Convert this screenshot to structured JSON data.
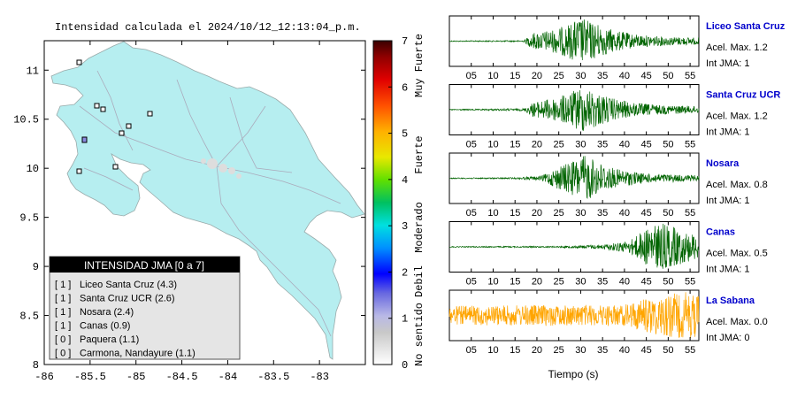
{
  "map_title": "Intensidad calculada el 2024/10/12_12:13:04_p.m.",
  "map": {
    "x_ticks": [
      "-86",
      "-85.5",
      "-85",
      "-84.5",
      "-84",
      "-83.5",
      "-83"
    ],
    "y_ticks": [
      "11",
      "10.5",
      "10",
      "9.5",
      "9",
      "8.5",
      "8"
    ],
    "land_color": "#b6eef0",
    "water_color": "#ffffff"
  },
  "colorbar": {
    "ticks": [
      "7",
      "6",
      "5",
      "4",
      "3",
      "2",
      "1",
      "0"
    ],
    "categories": [
      "Muy Fuerte",
      "Fuerte",
      "Moderado",
      "Debil",
      "No sentido"
    ]
  },
  "legend": {
    "title": "INTENSIDAD JMA [0 a 7]",
    "items": [
      {
        "level": "[ 1 ]",
        "station": "Liceo Santa Cruz (4.3)"
      },
      {
        "level": "[ 1 ]",
        "station": "Santa Cruz UCR (2.6)"
      },
      {
        "level": "[ 1 ]",
        "station": "Nosara (2.4)"
      },
      {
        "level": "[ 1 ]",
        "station": "Canas (0.9)"
      },
      {
        "level": "[ 0 ]",
        "station": "Paquera (1.1)"
      },
      {
        "level": "[ 0 ]",
        "station": "Carmona, Nandayure (1.1)"
      }
    ]
  },
  "chart_data": {
    "type": "line",
    "xlabel": "Tiempo (s)",
    "x_ticks": [
      "05",
      "10",
      "15",
      "20",
      "25",
      "30",
      "35",
      "40",
      "45",
      "50",
      "55"
    ],
    "xlim": [
      0,
      57
    ],
    "traces": [
      {
        "name": "Liceo Santa Cruz",
        "accel": "Acel. Max. 1.2",
        "jma": "Int JMA: 1",
        "color": "#006400",
        "envelope": [
          [
            0,
            0.02
          ],
          [
            17,
            0.03
          ],
          [
            19,
            0.35
          ],
          [
            24,
            0.5
          ],
          [
            27,
            0.7
          ],
          [
            30,
            1.0
          ],
          [
            33,
            0.8
          ],
          [
            37,
            0.5
          ],
          [
            42,
            0.3
          ],
          [
            48,
            0.2
          ],
          [
            57,
            0.15
          ]
        ]
      },
      {
        "name": "Santa Cruz UCR",
        "accel": "Acel. Max. 1.2",
        "jma": "Int JMA: 1",
        "color": "#006400",
        "envelope": [
          [
            0,
            0.02
          ],
          [
            17,
            0.05
          ],
          [
            19,
            0.3
          ],
          [
            25,
            0.55
          ],
          [
            28,
            0.75
          ],
          [
            30,
            1.0
          ],
          [
            33,
            0.8
          ],
          [
            37,
            0.5
          ],
          [
            42,
            0.3
          ],
          [
            48,
            0.2
          ],
          [
            57,
            0.15
          ]
        ]
      },
      {
        "name": "Nosara",
        "accel": "Acel. Max. 0.8",
        "jma": "Int JMA: 1",
        "color": "#006400",
        "envelope": [
          [
            0,
            0.02
          ],
          [
            15,
            0.03
          ],
          [
            21,
            0.1
          ],
          [
            25,
            0.5
          ],
          [
            29,
            0.8
          ],
          [
            31,
            1.0
          ],
          [
            34,
            0.7
          ],
          [
            38,
            0.4
          ],
          [
            45,
            0.2
          ],
          [
            57,
            0.12
          ]
        ]
      },
      {
        "name": "Canas",
        "accel": "Acel. Max. 0.5",
        "jma": "Int JMA: 1",
        "color": "#006400",
        "envelope": [
          [
            0,
            0.02
          ],
          [
            25,
            0.03
          ],
          [
            35,
            0.1
          ],
          [
            41,
            0.25
          ],
          [
            44,
            0.65
          ],
          [
            46,
            0.9
          ],
          [
            49,
            1.0
          ],
          [
            52,
            0.8
          ],
          [
            55,
            0.6
          ],
          [
            57,
            0.5
          ]
        ]
      },
      {
        "name": "La Sabana",
        "accel": "Acel. Max. 0.0",
        "jma": "Int JMA: 0",
        "color": "#ffa500",
        "envelope": [
          [
            0,
            0.4
          ],
          [
            20,
            0.45
          ],
          [
            40,
            0.45
          ],
          [
            42,
            0.6
          ],
          [
            46,
            0.8
          ],
          [
            50,
            0.9
          ],
          [
            54,
            1.0
          ],
          [
            57,
            0.9
          ]
        ]
      }
    ]
  }
}
